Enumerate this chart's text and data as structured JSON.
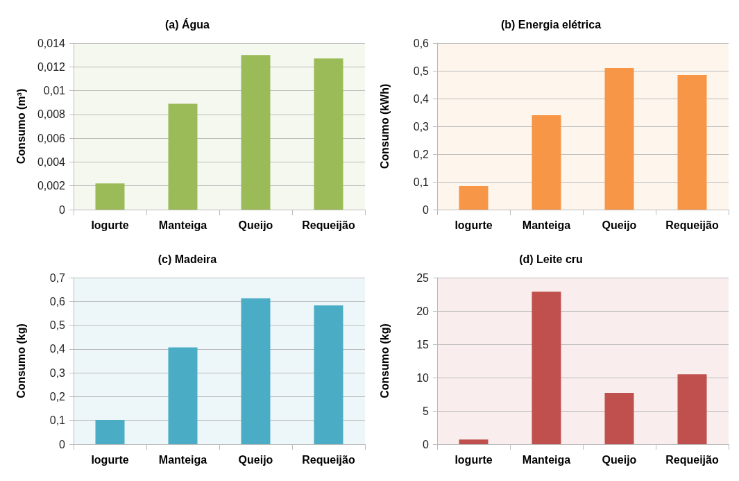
{
  "chart_data": [
    {
      "type": "bar",
      "title": "(a) Água",
      "ylabel": "Consumo (m³)",
      "categories": [
        "Iogurte",
        "Manteiga",
        "Queijo",
        "Requeijão"
      ],
      "values": [
        0.0022,
        0.0089,
        0.013,
        0.0127
      ],
      "color": "#9bbb59",
      "ylim": [
        0,
        0.014
      ],
      "yticks": [
        0,
        {
          "value": 0.002,
          "label": "0,002"
        },
        {
          "value": 0.004,
          "label": "0,004"
        },
        {
          "value": 0.006,
          "label": "0,006"
        },
        {
          "value": 0.008,
          "label": "0,008"
        },
        {
          "value": 0.01,
          "label": "0,01"
        },
        {
          "value": 0.012,
          "label": "0,012"
        },
        {
          "value": 0.014,
          "label": "0,014"
        }
      ],
      "grid": "y"
    },
    {
      "type": "bar",
      "title": "(b) Energia elétrica",
      "ylabel": "Consumo (kWh)",
      "categories": [
        "Iogurte",
        "Manteiga",
        "Queijo",
        "Requeijão"
      ],
      "values": [
        0.085,
        0.34,
        0.51,
        0.485
      ],
      "color": "#f79646",
      "ylim": [
        0,
        0.6
      ],
      "yticks": [
        0,
        {
          "value": 0.1,
          "label": "0,1"
        },
        {
          "value": 0.2,
          "label": "0,2"
        },
        {
          "value": 0.3,
          "label": "0,3"
        },
        {
          "value": 0.4,
          "label": "0,4"
        },
        {
          "value": 0.5,
          "label": "0,5"
        },
        {
          "value": 0.6,
          "label": "0,6"
        }
      ],
      "grid": "y"
    },
    {
      "type": "bar",
      "title": "(c) Madeira",
      "ylabel": "Consumo (kg)",
      "categories": [
        "Iogurte",
        "Manteiga",
        "Queijo",
        "Requeijão"
      ],
      "values": [
        0.102,
        0.407,
        0.613,
        0.583
      ],
      "color": "#4bacc6",
      "ylim": [
        0,
        0.7
      ],
      "yticks": [
        0,
        {
          "value": 0.1,
          "label": "0,1"
        },
        {
          "value": 0.2,
          "label": "0,2"
        },
        {
          "value": 0.3,
          "label": "0,3"
        },
        {
          "value": 0.4,
          "label": "0,4"
        },
        {
          "value": 0.5,
          "label": "0,5"
        },
        {
          "value": 0.6,
          "label": "0,6"
        },
        {
          "value": 0.7,
          "label": "0,7"
        }
      ],
      "grid": "y"
    },
    {
      "type": "bar",
      "title": "(d) Leite cru",
      "ylabel": "Consumo (kg)",
      "categories": [
        "Iogurte",
        "Manteiga",
        "Queijo",
        "Requeijão"
      ],
      "values": [
        0.7,
        22.9,
        7.7,
        10.5
      ],
      "color": "#c0504d",
      "ylim": [
        0,
        25
      ],
      "yticks": [
        0,
        5,
        10,
        15,
        20,
        25
      ],
      "grid": "y"
    }
  ]
}
